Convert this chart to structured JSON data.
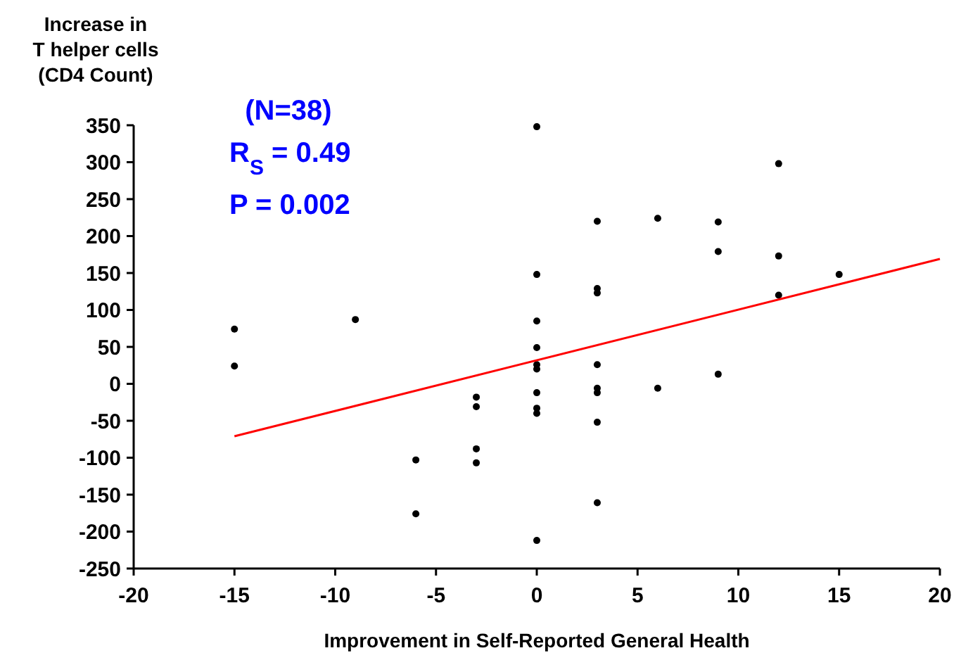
{
  "chart_data": {
    "type": "scatter",
    "ylabel": "Increase in\nT helper cells\n(CD4 Count)",
    "xlabel": "Improvement in Self-Reported General Health",
    "annotations": [
      "(N=38)",
      "R$_{S}$ = 0.49",
      "P = 0.002"
    ],
    "xlim": [
      -20,
      20
    ],
    "xticks": [
      -20,
      -15,
      -10,
      -5,
      0,
      5,
      10,
      15,
      20
    ],
    "ylim": [
      -250,
      350
    ],
    "yticks": [
      -250,
      -200,
      -150,
      -100,
      -50,
      0,
      50,
      100,
      150,
      200,
      250,
      300,
      350
    ],
    "grid": false,
    "marker": "circle",
    "series": [
      {
        "color": "#000000",
        "x": [
          -15,
          -15,
          -9,
          -6,
          -6,
          -3,
          -3,
          -3,
          -3,
          0,
          0,
          0,
          0,
          0,
          0,
          0,
          0,
          0,
          0,
          3,
          3,
          3,
          3,
          3,
          3,
          3,
          3,
          6,
          6,
          9,
          9,
          9,
          12,
          12,
          12,
          15
        ],
        "values": [
          74,
          24,
          87,
          -103,
          -176,
          -18,
          -31,
          -88,
          -107,
          348,
          148,
          85,
          49,
          26,
          20,
          -12,
          -33,
          -40,
          -212,
          220,
          129,
          123,
          26,
          -6,
          -12,
          -52,
          -161,
          224,
          -6,
          219,
          179,
          13,
          298,
          173,
          120,
          148
        ]
      },
      {
        "type": "line",
        "color": "#ff0000",
        "marker": "none",
        "line_style": "solid",
        "x": [
          -15,
          20
        ],
        "values": [
          -71,
          169
        ]
      }
    ]
  }
}
